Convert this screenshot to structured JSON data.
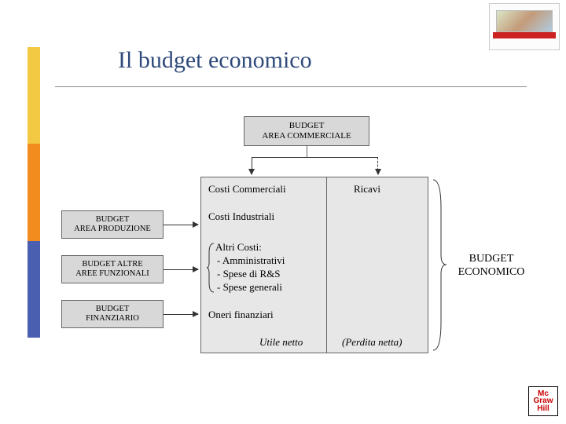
{
  "title": {
    "text": "Il budget economico",
    "color": "#2e4a7a",
    "fontsize": 30
  },
  "sidebar_colors": [
    "#f3c843",
    "#f28c1e",
    "#4a5fb0"
  ],
  "nodes": {
    "commerciale": {
      "label": "BUDGET\nAREA COMMERCIALE",
      "bg": "#d8d8d8"
    },
    "produzione": {
      "label": "BUDGET\nAREA PRODUZIONE",
      "bg": "#d8d8d8"
    },
    "funzionali": {
      "label": "BUDGET ALTRE\nAREE FUNZIONALI",
      "bg": "#d8d8d8"
    },
    "finanziario": {
      "label": "BUDGET\nFINANZIARIO",
      "bg": "#d8d8d8"
    }
  },
  "main_box": {
    "bg": "#e7e7e7",
    "col1": {
      "rows": [
        "Costi Commerciali",
        "Costi Industriali",
        "Altri Costi:",
        " - Amministrativi",
        " - Spese di R&S",
        " - Spese generali",
        "Oneri finanziari"
      ],
      "footer": "Utile netto"
    },
    "col2": {
      "header": "Ricavi",
      "footer": "(Perdita netta)"
    }
  },
  "output_label": "BUDGET ECONOMICO",
  "brace_small_items": [
    "Amministrativi",
    "Spese di R&S",
    "Spese generali"
  ],
  "logo": {
    "l1": "Mc",
    "l2": "Graw",
    "l3": "Hill"
  },
  "fonts": {
    "node": 11,
    "body": 13,
    "footer_italic": 13,
    "output": 14
  }
}
